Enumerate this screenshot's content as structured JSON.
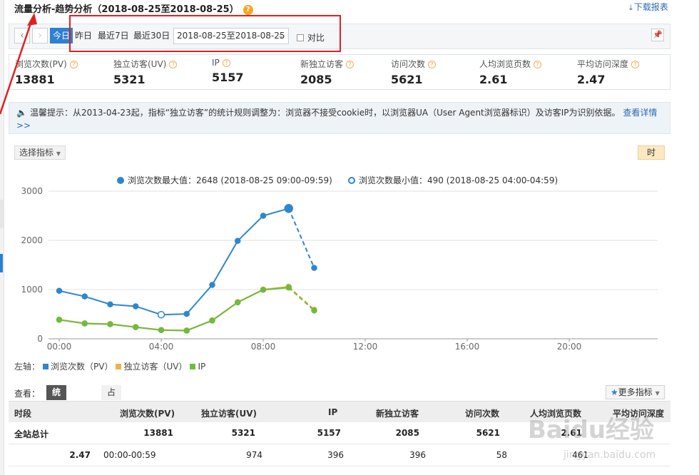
{
  "header": {
    "title": "流量分析-趋势分析（2018-08-25至2018-08-25）",
    "help": "?",
    "download_label": "下载报表"
  },
  "toolbar": {
    "prev": "‹",
    "next": "›",
    "today": "今日",
    "yesterday": "昨日",
    "last7": "最近7日",
    "last30": "最近30日",
    "date_range": "2018-08-25至2018-08-25",
    "compare_label": "对比"
  },
  "metrics": [
    {
      "label": "浏览次数(PV)",
      "value": "13881"
    },
    {
      "label": "独立访客(UV)",
      "value": "5321"
    },
    {
      "label": "IP",
      "value": "5157"
    },
    {
      "label": "新独立访客",
      "value": "2085"
    },
    {
      "label": "访问次数",
      "value": "5621"
    },
    {
      "label": "人均浏览页数",
      "value": "2.61"
    },
    {
      "label": "平均访问深度",
      "value": "2.47"
    }
  ],
  "notice": {
    "text": "温馨提示：从2013-04-23起，指标“独立访客”的统计规则调整为：浏览器不接受cookie时，以浏览器UA（User Agent浏览器标识）及访客IP为识别依据。",
    "link": "查看详情",
    "more": ">>"
  },
  "controls": {
    "select_metric": "选择指标",
    "hour": "时"
  },
  "chart_legend": {
    "max": "浏览次数最大值：2648 (2018-08-25 09:00-09:59)",
    "min": "浏览次数最小值：490 (2018-08-25 04:00-04:59)"
  },
  "chart_data": {
    "type": "line",
    "x": [
      0,
      1,
      2,
      3,
      4,
      5,
      6,
      7,
      8,
      9,
      10
    ],
    "xticks": [
      "00:00",
      "04:00",
      "08:00",
      "12:00",
      "16:00",
      "20:00"
    ],
    "xtick_hours": [
      0,
      4,
      8,
      12,
      16,
      20
    ],
    "xlim": [
      0,
      23.5
    ],
    "ylim": [
      0,
      3000
    ],
    "yticks": [
      0,
      1000,
      2000,
      3000
    ],
    "grid": true,
    "legend_position": "bottom-left",
    "series": [
      {
        "name": "浏览次数（PV）",
        "color": "#2f86cf",
        "values": [
          975,
          860,
          700,
          660,
          490,
          505,
          1095,
          1990,
          2500,
          2648,
          1440
        ]
      },
      {
        "name": "独立访客（UV）",
        "color": "#f0b04a",
        "values": [
          390,
          315,
          300,
          240,
          180,
          170,
          375,
          745,
          1000,
          1060,
          590
        ]
      },
      {
        "name": "IP",
        "color": "#6fbb3f",
        "values": [
          385,
          310,
          295,
          235,
          175,
          165,
          370,
          740,
          995,
          1040,
          575
        ]
      }
    ],
    "dashed_from_index": 9,
    "max_point_index": 9,
    "min_point_index": 4
  },
  "axis_legend": {
    "prefix": "左轴：",
    "pv": "浏览次数（PV）",
    "uv": "独立访客（UV）",
    "ip": "IP"
  },
  "view": {
    "label": "查看：",
    "tab_stats": "统计报表",
    "tab_ratio": "占比",
    "more_metrics": "更多指标"
  },
  "table": {
    "headers": [
      "时段",
      "浏览次数(PV)",
      "独立访客(UV)",
      "IP",
      "新独立访客",
      "访问次数",
      "人均浏览页数",
      "平均访问深度"
    ],
    "total_row": [
      "全站总计",
      "13881",
      "5321",
      "5157",
      "2085",
      "5621",
      "2.61",
      ""
    ],
    "row1": [
      "2.47",
      "00:00-00:59",
      "974",
      "396",
      "396",
      "58",
      "461",
      ""
    ]
  },
  "watermark": {
    "main": "Baidu经验",
    "sub": "jingyan.baidu.com"
  }
}
